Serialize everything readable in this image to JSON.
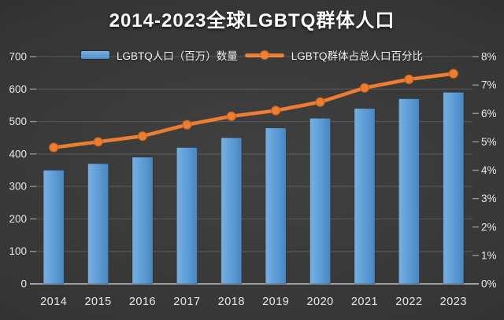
{
  "title": "2014-2023全球LGBTQ群体人口",
  "legend": [
    {
      "label": "LGBTQ人口（百万）数量",
      "type": "bar",
      "color": "#5B9BD5"
    },
    {
      "label": "LGBTQ群体占总人口百分比",
      "type": "line",
      "color": "#ED7D31"
    }
  ],
  "axes": {
    "left": {
      "ticks": [
        "0",
        "100",
        "200",
        "300",
        "400",
        "500",
        "600",
        "700"
      ]
    },
    "right": {
      "ticks": [
        "0%",
        "1%",
        "2%",
        "3%",
        "4%",
        "5%",
        "6%",
        "7%",
        "8%"
      ]
    },
    "x": {
      "labels": [
        "2014",
        "2015",
        "2016",
        "2017",
        "2018",
        "2019",
        "2020",
        "2021",
        "2022",
        "2023"
      ]
    }
  },
  "chart_data": {
    "type": "bar+line combo",
    "title": "2014-2023全球LGBTQ群体人口",
    "categories": [
      "2014",
      "2015",
      "2016",
      "2017",
      "2018",
      "2019",
      "2020",
      "2021",
      "2022",
      "2023"
    ],
    "series": [
      {
        "name": "LGBTQ人口（百万）数量",
        "type": "bar",
        "axis": "left",
        "color": "#5B9BD5",
        "values": [
          350,
          370,
          390,
          420,
          450,
          480,
          510,
          540,
          570,
          590
        ]
      },
      {
        "name": "LGBTQ群体占总人口百分比",
        "type": "line",
        "axis": "right",
        "color": "#ED7D31",
        "values": [
          4.8,
          5.0,
          5.2,
          5.6,
          5.9,
          6.1,
          6.4,
          6.9,
          7.2,
          7.4
        ]
      }
    ],
    "left_ylim": [
      0,
      700
    ],
    "left_tick_step": 100,
    "right_ylim": [
      0,
      8
    ],
    "right_tick_step": 1,
    "grid": true,
    "legend_position": "top"
  },
  "colors": {
    "bar": "#5B9BD5",
    "bar_light": "#79afe0",
    "bar_dark": "#4a86bf",
    "bar_edge": "#39699a",
    "line": "#ED7D31",
    "marker_edge": "#cf6722",
    "grid": "rgba(255,255,255,0.14)",
    "tick": "#9a9a9a",
    "axis_line": "#c0c0c0",
    "text": "#e8e8e8",
    "background_center": "#414141",
    "background_edge": "#262626",
    "title_text": "#ffffff"
  }
}
